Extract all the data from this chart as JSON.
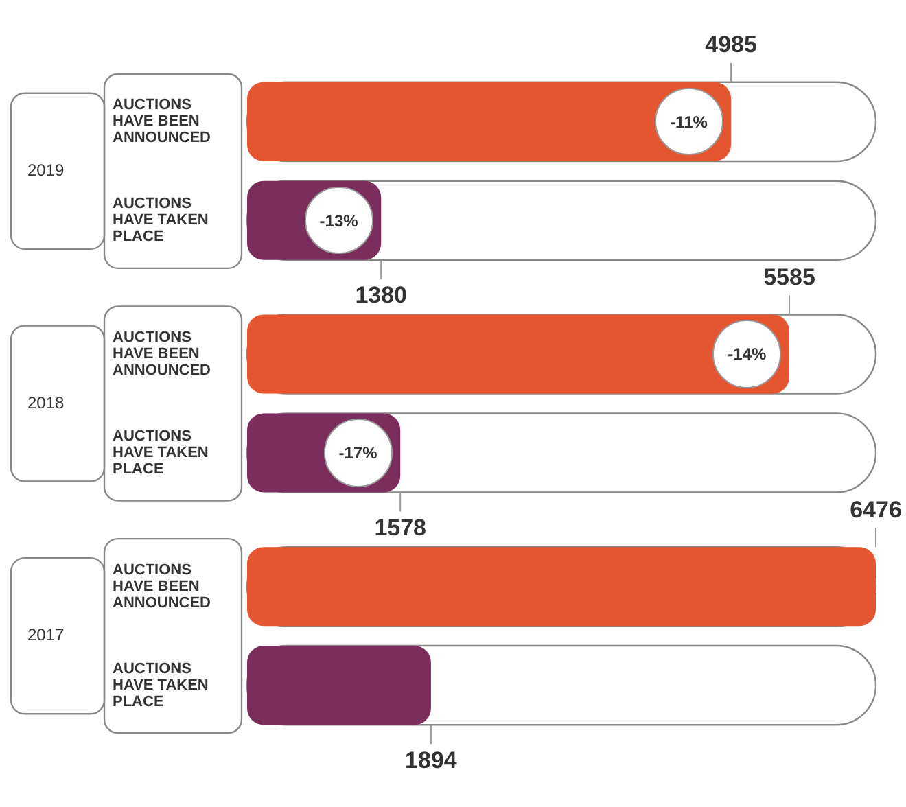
{
  "chart_data": {
    "type": "bar",
    "orientation": "horizontal",
    "categories": [
      "2019",
      "2018",
      "2017"
    ],
    "series": [
      {
        "name": "AUCTIONS HAVE BEEN ANNOUNCED",
        "color": "#e5552f",
        "values": [
          4985,
          5585,
          6476
        ]
      },
      {
        "name": "AUCTIONS HAVE TAKEN PLACE",
        "color": "#7b2d5c",
        "values": [
          1380,
          1578,
          1894
        ]
      }
    ],
    "xlim": [
      0,
      6476
    ],
    "tick_labels": "y",
    "grid": false,
    "legend": false,
    "data_labels": true,
    "annotations": [
      "-11%",
      "-13%",
      "-14%",
      "-17%"
    ]
  }
}
